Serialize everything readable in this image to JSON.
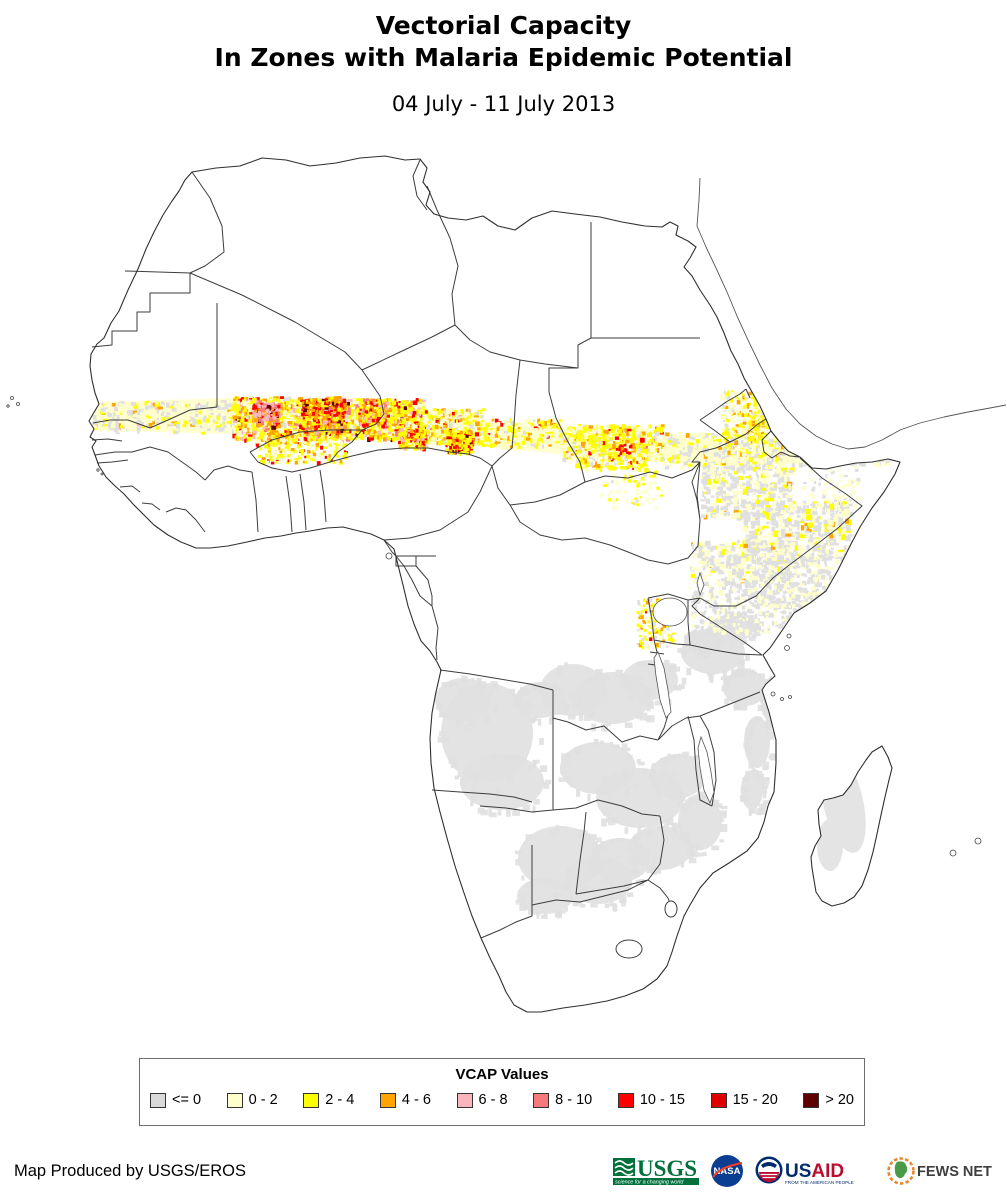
{
  "header": {
    "title_line1": "Vectorial Capacity",
    "title_line2": "In Zones with Malaria Epidemic Potential",
    "date_range": "04 July - 11 July 2013"
  },
  "legend": {
    "title": "VCAP Values",
    "items": [
      {
        "label": "<= 0",
        "color": "#d9d9d9"
      },
      {
        "label": "0 - 2",
        "color": "#ffffcc"
      },
      {
        "label": "2 - 4",
        "color": "#ffff00"
      },
      {
        "label": "4 - 6",
        "color": "#ffa400"
      },
      {
        "label": "6 - 8",
        "color": "#f9b7bd"
      },
      {
        "label": "8 - 10",
        "color": "#f8797b"
      },
      {
        "label": "10 - 15",
        "color": "#ff0000"
      },
      {
        "label": "15 - 20",
        "color": "#e00000"
      },
      {
        "label": "> 20",
        "color": "#5e0000"
      }
    ]
  },
  "footer": {
    "credit": "Map Produced by USGS/EROS",
    "usgs_label": "USGS",
    "usgs_tagline": "science for a changing world",
    "nasa_label": "NASA",
    "usaid_label_us": "US",
    "usaid_label_aid": "AID",
    "usaid_tagline": "FROM THE AMERICAN PEOPLE",
    "fews_label": "FEWS NET"
  },
  "map_colors": {
    "le0": "#e0e0e0",
    "pale": "#ffffcc",
    "yellow": "#ffff00",
    "orange": "#ffa400",
    "pink": "#f9b7bd",
    "salmon": "#f8797b",
    "red": "#ff0000",
    "red2": "#e00000",
    "dark": "#5e0000",
    "border": "#3d3d3d"
  }
}
